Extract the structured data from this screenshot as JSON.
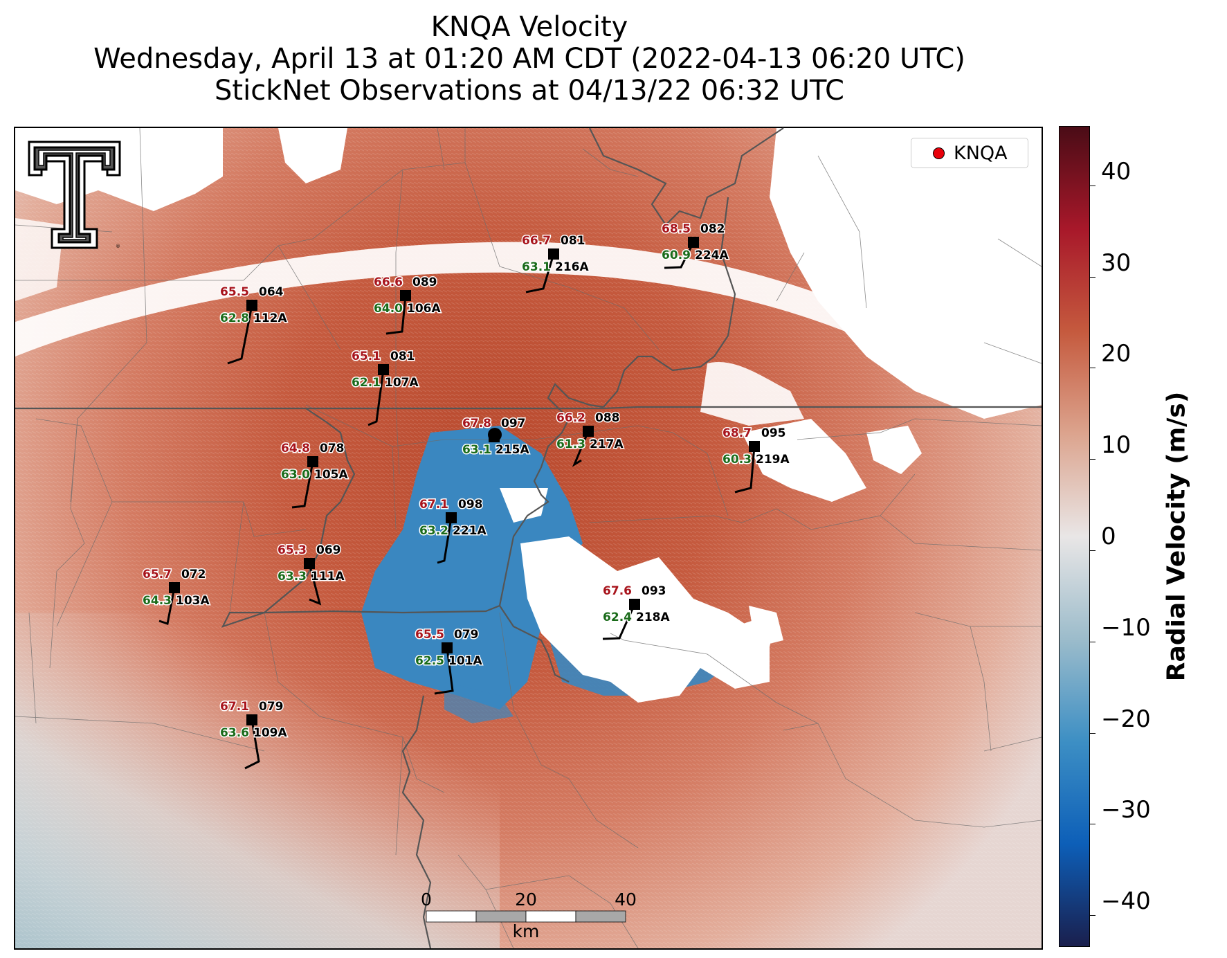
{
  "title": {
    "line1": "KNQA Velocity",
    "line2": "Wednesday, April 13 at 01:20 AM CDT (2022-04-13 06:20 UTC)",
    "line3": "StickNet Observations at 04/13/22 06:32 UTC"
  },
  "legend": {
    "label": "KNQA"
  },
  "colorbar": {
    "label": "Radial Velocity (m/s)",
    "min": -45,
    "max": 45,
    "ticks": [
      "40",
      "30",
      "20",
      "10",
      "0",
      "−10",
      "−20",
      "−30",
      "−40"
    ],
    "tick_values": [
      40,
      30,
      20,
      10,
      0,
      -10,
      -20,
      -30,
      -40
    ],
    "colors": [
      "#1a1f4d",
      "#0d5fb8",
      "#3d8fc4",
      "#9cbccb",
      "#e9e6e6",
      "#dca48e",
      "#c55a3e",
      "#a8182a",
      "#4a0c16"
    ]
  },
  "scalebar": {
    "ticks": [
      "0",
      "20",
      "40"
    ],
    "unit": "km"
  },
  "stations": [
    {
      "id": "112A",
      "temp": "65.5",
      "dew": "62.8",
      "dir": "064"
    },
    {
      "id": "106A",
      "temp": "66.6",
      "dew": "64.0",
      "dir": "089"
    },
    {
      "id": "216A",
      "temp": "66.7",
      "dew": "63.1",
      "dir": "081"
    },
    {
      "id": "224A",
      "temp": "68.5",
      "dew": "60.9",
      "dir": "082"
    },
    {
      "id": "107A",
      "temp": "65.1",
      "dew": "62.1",
      "dir": "081"
    },
    {
      "id": "215A",
      "temp": "67.8",
      "dew": "63.1",
      "dir": "097"
    },
    {
      "id": "217A",
      "temp": "66.2",
      "dew": "61.3",
      "dir": "088"
    },
    {
      "id": "219A",
      "temp": "68.7",
      "dew": "60.3",
      "dir": "095"
    },
    {
      "id": "105A",
      "temp": "64.8",
      "dew": "63.0",
      "dir": "078"
    },
    {
      "id": "221A",
      "temp": "67.1",
      "dew": "63.2",
      "dir": "098"
    },
    {
      "id": "111A",
      "temp": "65.3",
      "dew": "63.3",
      "dir": "069"
    },
    {
      "id": "103A",
      "temp": "65.7",
      "dew": "64.3",
      "dir": "072"
    },
    {
      "id": "218A",
      "temp": "67.6",
      "dew": "62.4",
      "dir": "093"
    },
    {
      "id": "101A",
      "temp": "65.5",
      "dew": "62.5",
      "dir": "079"
    },
    {
      "id": "109A",
      "temp": "67.1",
      "dew": "63.6",
      "dir": "079"
    }
  ]
}
